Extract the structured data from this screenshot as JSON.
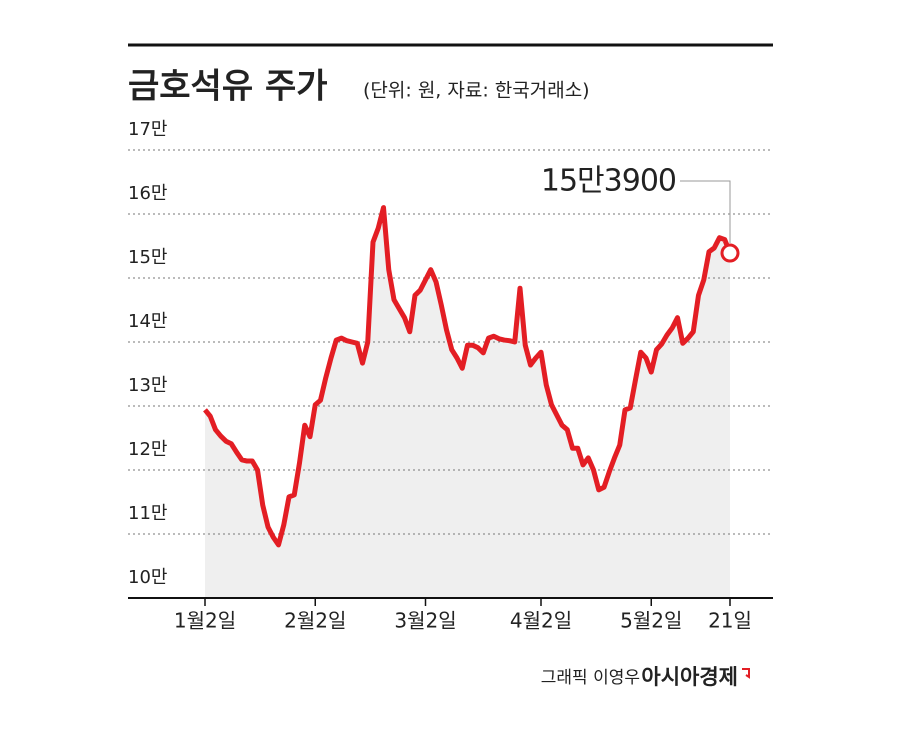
{
  "chart_data": {
    "type": "line",
    "title": "금호석유 주가",
    "subtitle": "(단위: 원, 자료: 한국거래소)",
    "annotation": "15만3900",
    "credit": "그래픽 이영우",
    "source": "아시아경제",
    "color": "#e31e24",
    "area_color": "#efefef",
    "grid": true,
    "categories": [
      "1월2일",
      null,
      null,
      null,
      null,
      null,
      null,
      null,
      null,
      null,
      null,
      null,
      null,
      null,
      null,
      null,
      null,
      null,
      null,
      null,
      null,
      "2월2일",
      null,
      null,
      null,
      null,
      null,
      null,
      null,
      null,
      null,
      null,
      null,
      null,
      null,
      null,
      null,
      null,
      null,
      null,
      null,
      null,
      "3월2일",
      null,
      null,
      null,
      null,
      null,
      null,
      null,
      null,
      null,
      null,
      null,
      null,
      null,
      null,
      null,
      null,
      null,
      null,
      null,
      null,
      null,
      "4월2일",
      null,
      null,
      null,
      null,
      null,
      null,
      null,
      null,
      null,
      null,
      null,
      null,
      null,
      null,
      null,
      null,
      null,
      null,
      null,
      null,
      "5월2일",
      null,
      null,
      null,
      null,
      null,
      null,
      null,
      null,
      null,
      null,
      null,
      null,
      null,
      null,
      "21일"
    ],
    "values": [
      129400,
      128400,
      126300,
      125300,
      124500,
      124100,
      122800,
      121600,
      121400,
      121400,
      120000,
      114500,
      111100,
      109500,
      108300,
      111400,
      115800,
      116100,
      121100,
      127000,
      125200,
      130200,
      130900,
      134400,
      137500,
      140300,
      140600,
      140200,
      140000,
      139800,
      136700,
      140000,
      155600,
      157800,
      161000,
      151300,
      146600,
      145200,
      143800,
      141600,
      147300,
      148100,
      149700,
      151300,
      149400,
      145800,
      141900,
      138800,
      137500,
      135900,
      139500,
      139500,
      139100,
      138300,
      140600,
      140900,
      140500,
      140300,
      140200,
      140000,
      148400,
      139500,
      136400,
      137500,
      138400,
      133300,
      130200,
      128600,
      127000,
      126300,
      123400,
      123400,
      120800,
      121900,
      120000,
      116900,
      117300,
      119700,
      121900,
      123900,
      129400,
      129700,
      134100,
      138400,
      137500,
      135300,
      138800,
      139700,
      141100,
      142200,
      143800,
      139800,
      140600,
      141600,
      147300,
      149700,
      154100,
      154700,
      156300,
      156000,
      153900
    ],
    "ylim": [
      100000,
      170000
    ],
    "yticks": [
      {
        "value": 100000,
        "label": "10만"
      },
      {
        "value": 110000,
        "label": "11만"
      },
      {
        "value": 120000,
        "label": "12만"
      },
      {
        "value": 130000,
        "label": "13만"
      },
      {
        "value": 140000,
        "label": "14만"
      },
      {
        "value": 150000,
        "label": "15만"
      },
      {
        "value": 160000,
        "label": "16만"
      },
      {
        "value": 170000,
        "label": "17만"
      }
    ]
  }
}
